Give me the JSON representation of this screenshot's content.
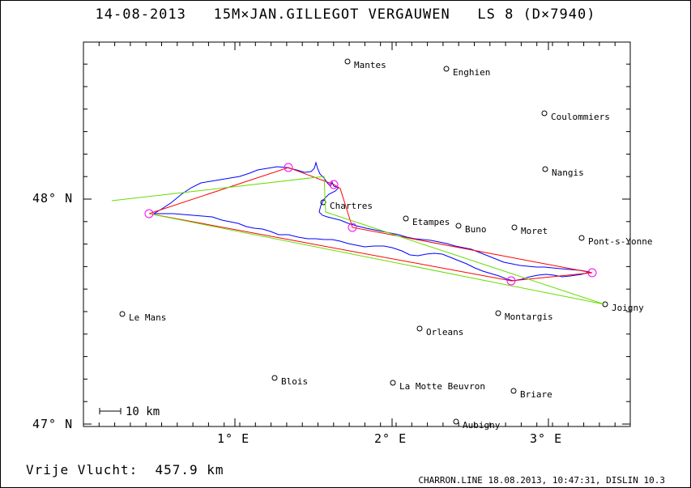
{
  "title": "14-08-2013   15M×JAN.GILLEGOT VERGAUWEN   LS 8 (D×7940)",
  "flight_label": "Vrije Vlucht:  457.9 km",
  "footer": "CHARRON.LINE 18.08.2013, 10:47:31, DISLIN 10.3",
  "scale_label": "10 km",
  "axes": {
    "lon_labels": [
      "1° E",
      "2° E",
      "3° E"
    ],
    "lat_labels": [
      "48° N",
      "47° N"
    ]
  },
  "towns": [
    {
      "name": "Mantes"
    },
    {
      "name": "Enghien"
    },
    {
      "name": "Coulommiers"
    },
    {
      "name": "Nangis"
    },
    {
      "name": "Chartres"
    },
    {
      "name": "Etampes"
    },
    {
      "name": "Buno"
    },
    {
      "name": "Moret"
    },
    {
      "name": "Pont-s-Yonne"
    },
    {
      "name": "Le Mans"
    },
    {
      "name": "Montargis"
    },
    {
      "name": "Joigny"
    },
    {
      "name": "Orleans"
    },
    {
      "name": "Blois"
    },
    {
      "name": "La Motte Beuvron"
    },
    {
      "name": "Briare"
    },
    {
      "name": "Aubigny"
    }
  ],
  "colors": {
    "track": "#0000ff",
    "task": "#ff0000",
    "alt": "#66dd00",
    "turnpoint": "#ff00ff"
  }
}
